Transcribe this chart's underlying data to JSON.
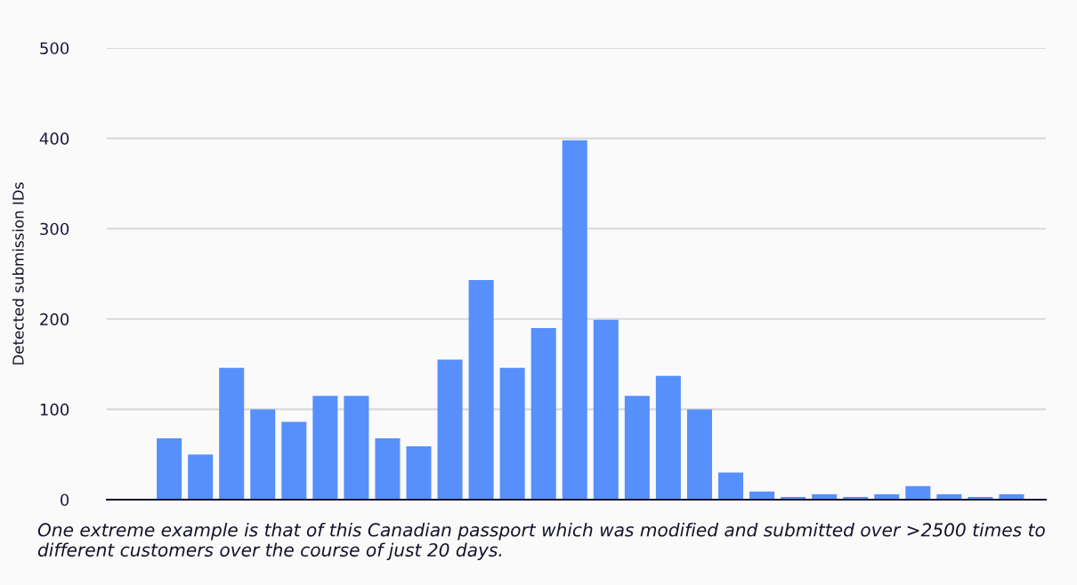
{
  "chart_data": {
    "type": "bar",
    "ylabel": "Detected submission IDs",
    "categories": [
      null,
      null,
      null,
      null,
      null,
      null,
      null,
      null,
      null,
      null,
      null,
      null,
      null,
      null,
      null,
      null,
      null,
      null,
      null,
      null,
      null,
      null,
      null,
      null,
      null,
      null,
      null,
      null
    ],
    "values": [
      68,
      50,
      146,
      100,
      86,
      115,
      115,
      68,
      59,
      155,
      243,
      146,
      190,
      398,
      199,
      115,
      137,
      100,
      30,
      9,
      3,
      6,
      3,
      6,
      15,
      6,
      3,
      6
    ],
    "color": "#5790fc",
    "ylim": [
      0,
      500
    ],
    "yticks": [
      0,
      100,
      200,
      300,
      400,
      500
    ],
    "grid": "y",
    "tick_labels": "y",
    "annotations": [
      "One extreme example is that of this Canadian passport which was modified and submitted over >2500 times to different customers over the course of just 20 days."
    ]
  }
}
